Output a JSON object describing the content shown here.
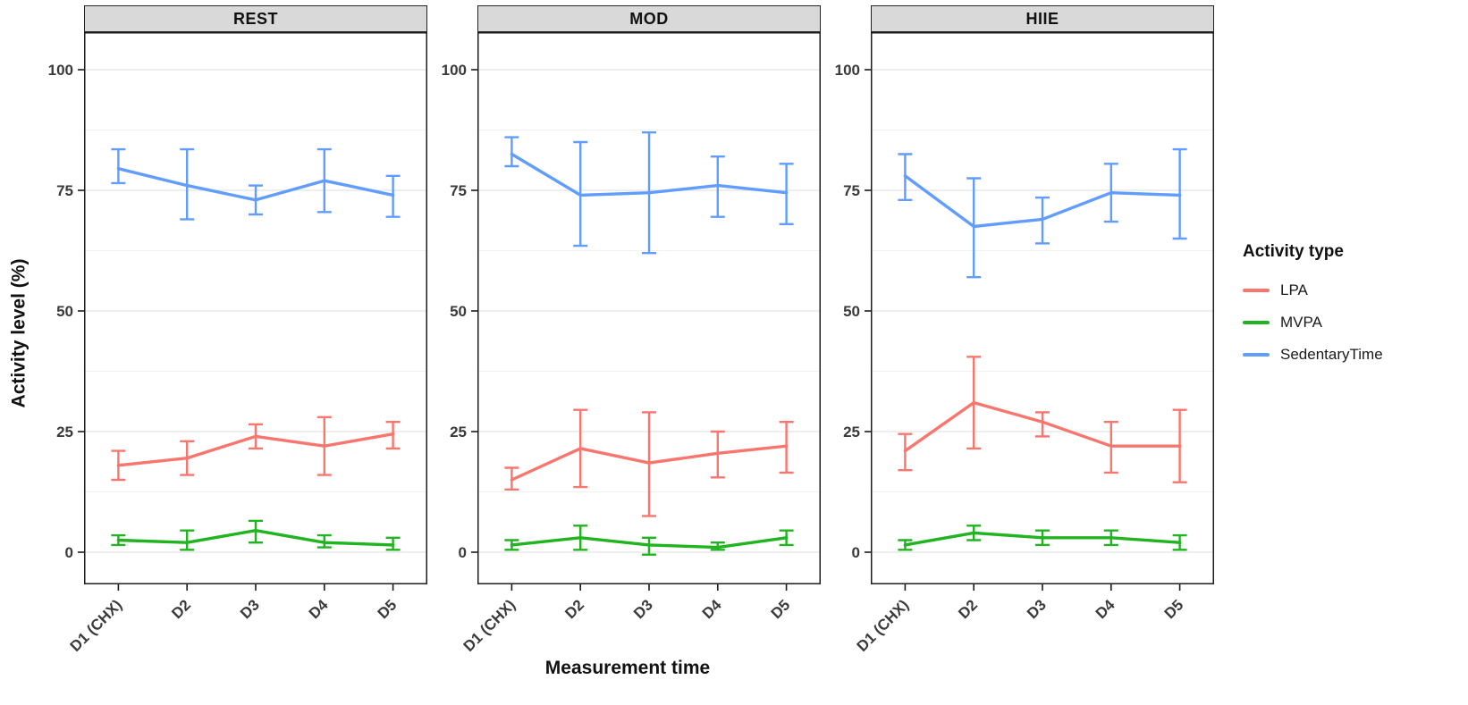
{
  "chart_data": {
    "type": "line",
    "categories": [
      "D1 (CHX)",
      "D2",
      "D3",
      "D4",
      "D5"
    ],
    "xlabel": "Measurement time",
    "ylabel": "Activity level (%)",
    "yticks": [
      0,
      25,
      50,
      75,
      100
    ],
    "ylim": [
      -6,
      107
    ],
    "grid": true,
    "legend_position": "right",
    "legend_title": "Activity type",
    "strip_background": "#D9D9D9",
    "series_defs": [
      {
        "name": "LPA",
        "color": "#F8766D"
      },
      {
        "name": "MVPA",
        "color": "#21B421"
      },
      {
        "name": "SedentaryTime",
        "color": "#619CFF"
      }
    ],
    "facets": [
      {
        "title": "REST",
        "series": [
          {
            "name": "LPA",
            "values": [
              18,
              19.5,
              24,
              22,
              24.5
            ],
            "err_lo": [
              15,
              16,
              21.5,
              16,
              21.5
            ],
            "err_hi": [
              21,
              23,
              26.5,
              28,
              27
            ]
          },
          {
            "name": "MVPA",
            "values": [
              2.5,
              2,
              4.5,
              2,
              1.5
            ],
            "err_lo": [
              1.5,
              0.5,
              2,
              1,
              0.5
            ],
            "err_hi": [
              3.5,
              4.5,
              6.5,
              3.5,
              3
            ]
          },
          {
            "name": "SedentaryTime",
            "values": [
              79.5,
              76,
              73,
              77,
              74
            ],
            "err_lo": [
              76.5,
              69,
              70,
              70.5,
              69.5
            ],
            "err_hi": [
              83.5,
              83.5,
              76,
              83.5,
              78
            ]
          }
        ]
      },
      {
        "title": "MOD",
        "series": [
          {
            "name": "LPA",
            "values": [
              15,
              21.5,
              18.5,
              20.5,
              22
            ],
            "err_lo": [
              13,
              13.5,
              7.5,
              15.5,
              16.5
            ],
            "err_hi": [
              17.5,
              29.5,
              29,
              25,
              27
            ]
          },
          {
            "name": "MVPA",
            "values": [
              1.5,
              3,
              1.5,
              1,
              3
            ],
            "err_lo": [
              0.5,
              0.5,
              -0.5,
              0.5,
              1.5
            ],
            "err_hi": [
              2.5,
              5.5,
              3,
              2,
              4.5
            ]
          },
          {
            "name": "SedentaryTime",
            "values": [
              82.5,
              74,
              74.5,
              76,
              74.5
            ],
            "err_lo": [
              80,
              63.5,
              62,
              69.5,
              68
            ],
            "err_hi": [
              86,
              85,
              87,
              82,
              80.5
            ]
          }
        ]
      },
      {
        "title": "HIIE",
        "series": [
          {
            "name": "LPA",
            "values": [
              21,
              31,
              27,
              22,
              22
            ],
            "err_lo": [
              17,
              21.5,
              24,
              16.5,
              14.5
            ],
            "err_hi": [
              24.5,
              40.5,
              29,
              27,
              29.5
            ]
          },
          {
            "name": "MVPA",
            "values": [
              1.5,
              4,
              3,
              3,
              2
            ],
            "err_lo": [
              0.5,
              2.5,
              1.5,
              1.5,
              0.5
            ],
            "err_hi": [
              2.5,
              5.5,
              4.5,
              4.5,
              3.5
            ]
          },
          {
            "name": "SedentaryTime",
            "values": [
              78,
              67.5,
              69,
              74.5,
              74
            ],
            "err_lo": [
              73,
              57,
              64,
              68.5,
              65
            ],
            "err_hi": [
              82.5,
              77.5,
              73.5,
              80.5,
              83.5
            ]
          }
        ]
      }
    ]
  }
}
